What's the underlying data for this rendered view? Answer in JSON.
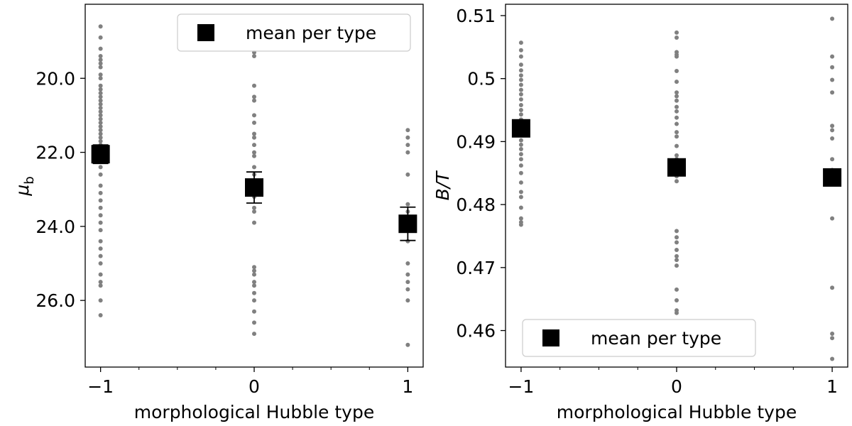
{
  "chart_data": [
    {
      "type": "scatter",
      "panel": "left",
      "xlabel": "morphological Hubble type",
      "ylabel_main": "μ",
      "ylabel_sub": "b",
      "x_ticks": [
        -1,
        0,
        1
      ],
      "x_tick_labels": [
        "−1",
        "0",
        "1"
      ],
      "x_minor_ticks": [
        -0.75,
        -0.5,
        -0.25,
        0.25,
        0.5,
        0.75
      ],
      "xlim": [
        -1.1,
        1.1
      ],
      "y_ticks": [
        20,
        22,
        24,
        26
      ],
      "y_tick_labels": [
        "20.0",
        "22.0",
        "24.0",
        "26.0"
      ],
      "ylim": [
        18.0,
        27.8
      ],
      "y_inverted": true,
      "grid": false,
      "legend": {
        "label": "mean per type",
        "placement": "top-right"
      },
      "point_color": "#808080",
      "mean_color": "#000000",
      "series": [
        {
          "x": -1,
          "y": [
            18.6,
            18.9,
            19.2,
            19.4,
            19.5,
            19.6,
            19.7,
            19.9,
            20.0,
            20.2,
            20.3,
            20.4,
            20.5,
            20.6,
            20.7,
            20.8,
            20.9,
            21.0,
            21.1,
            21.2,
            21.3,
            21.4,
            21.5,
            21.6,
            21.7,
            21.8,
            22.0,
            22.2,
            22.4,
            22.6,
            22.9,
            23.1,
            23.3,
            23.5,
            23.7,
            23.9,
            24.1,
            24.4,
            24.6,
            24.8,
            25.0,
            25.3,
            25.5,
            25.6,
            26.0,
            26.4
          ]
        },
        {
          "x": 0,
          "y": [
            19.3,
            19.4,
            20.2,
            20.5,
            20.6,
            21.0,
            21.2,
            21.5,
            21.6,
            21.8,
            22.0,
            22.1,
            22.4,
            22.6,
            22.9,
            23.2,
            23.5,
            23.6,
            23.9,
            25.1,
            25.2,
            25.3,
            25.5,
            25.6,
            25.8,
            26.0,
            26.3,
            26.6,
            26.9
          ]
        },
        {
          "x": 1,
          "y": [
            21.4,
            21.6,
            21.8,
            22.0,
            22.6,
            23.4,
            23.6,
            24.0,
            24.4,
            25.0,
            25.3,
            25.5,
            25.7,
            26.0,
            27.2
          ]
        }
      ],
      "means": [
        {
          "x": -1,
          "y": 22.05,
          "err": 0.25
        },
        {
          "x": 0,
          "y": 22.95,
          "err": 0.42
        },
        {
          "x": 1,
          "y": 23.93,
          "err": 0.45
        }
      ]
    },
    {
      "type": "scatter",
      "panel": "right",
      "xlabel": "morphological Hubble type",
      "ylabel": "B/T",
      "x_ticks": [
        -1,
        0,
        1
      ],
      "x_tick_labels": [
        "−1",
        "0",
        "1"
      ],
      "x_minor_ticks": [
        -0.75,
        -0.5,
        -0.25,
        0.25,
        0.5,
        0.75
      ],
      "xlim": [
        -1.1,
        1.1
      ],
      "y_ticks": [
        0.46,
        0.47,
        0.48,
        0.49,
        0.5,
        0.51
      ],
      "y_tick_labels": [
        "0.46",
        "0.47",
        "0.48",
        "0.49",
        "0.5",
        "0.51"
      ],
      "ylim": [
        0.4542,
        0.5118
      ],
      "grid": false,
      "legend": {
        "label": "mean per type",
        "placement": "bottom-left"
      },
      "point_color": "#808080",
      "mean_color": "#000000",
      "series": [
        {
          "x": -1,
          "y": [
            0.5057,
            0.5045,
            0.5035,
            0.5022,
            0.5013,
            0.5005,
            0.4998,
            0.499,
            0.4982,
            0.4975,
            0.4967,
            0.4958,
            0.495,
            0.4943,
            0.4935,
            0.4925,
            0.4918,
            0.491,
            0.4902,
            0.4895,
            0.4888,
            0.488,
            0.4872,
            0.4862,
            0.485,
            0.4835,
            0.482,
            0.4812,
            0.4795,
            0.4778,
            0.4772,
            0.4768
          ]
        },
        {
          "x": 0,
          "y": [
            0.5073,
            0.5065,
            0.5042,
            0.5038,
            0.5035,
            0.5012,
            0.4995,
            0.4978,
            0.4972,
            0.4965,
            0.4955,
            0.4948,
            0.4938,
            0.4928,
            0.4915,
            0.4908,
            0.4893,
            0.4878,
            0.4872,
            0.4865,
            0.4858,
            0.4852,
            0.4845,
            0.4837,
            0.4758,
            0.4748,
            0.474,
            0.4728,
            0.4718,
            0.4712,
            0.4703,
            0.4665,
            0.4648,
            0.4632,
            0.4628
          ]
        },
        {
          "x": 1,
          "y": [
            0.5095,
            0.5035,
            0.5018,
            0.4998,
            0.4978,
            0.4925,
            0.4918,
            0.4905,
            0.4872,
            0.4855,
            0.4778,
            0.4668,
            0.4595,
            0.4588,
            0.4555
          ]
        }
      ],
      "means": [
        {
          "x": -1,
          "y": 0.4921
        },
        {
          "x": 0,
          "y": 0.4859
        },
        {
          "x": 1,
          "y": 0.4843
        }
      ]
    }
  ]
}
